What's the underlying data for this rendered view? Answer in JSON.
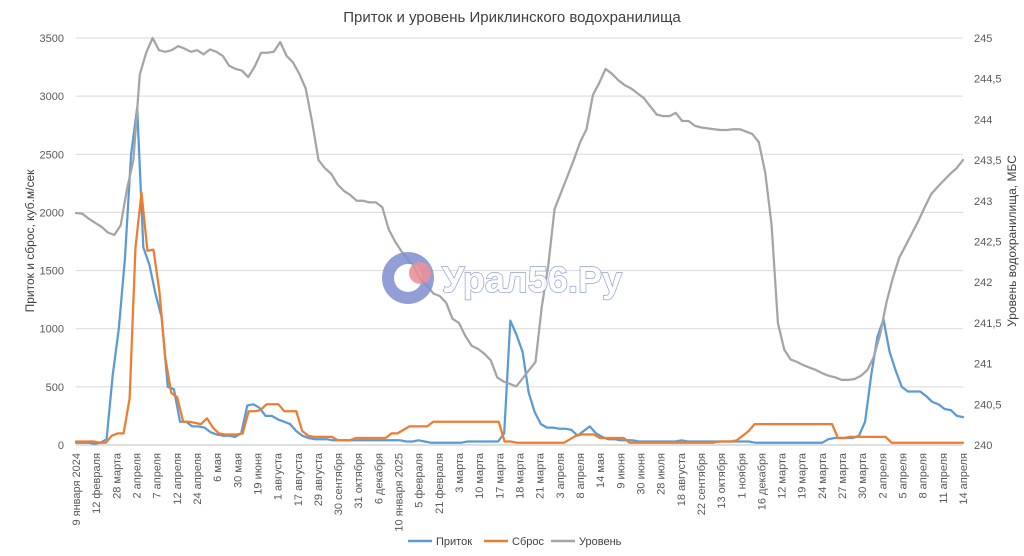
{
  "watermark": {
    "text": "Урал56.Ру"
  },
  "chart_data": {
    "type": "line",
    "title": "Приток и уровень Ириклинского водохранилища",
    "ylabel_left": "Приток и сброс, куб.м/сек",
    "ylabel_right": "Уровень водохранилища, МБС",
    "ylim_left": [
      0,
      3500
    ],
    "ylim_right": [
      240,
      245
    ],
    "left_ticks": [
      "0",
      "500",
      "1000",
      "1500",
      "2000",
      "2500",
      "3000",
      "3500"
    ],
    "right_ticks": [
      "240",
      "240,5",
      "241",
      "241,5",
      "242",
      "242,5",
      "243",
      "243,5",
      "244",
      "244,5",
      "245"
    ],
    "x_tick_labels": [
      "9 января 2024",
      "12 февраля",
      "28 марта",
      "2 апреля",
      "7 апреля",
      "12 апреля",
      "24 апреля",
      "6 мая",
      "30 мая",
      "19 июня",
      "1 августа",
      "17 августа",
      "29 августа",
      "30 сентября",
      "31 октября",
      "6 декабря",
      "10 января 2025",
      "5 февраля",
      "21 февраля",
      "3 марта",
      "10 марта",
      "17 марта",
      "18 марта",
      "21 марта",
      "3 апреля",
      "8 апреля",
      "14 мая",
      "9 июня",
      "30 июня",
      "28 июля",
      "18 августа",
      "22 сентября",
      "13 октября",
      "1 ноября",
      "16 декабря",
      "12 марта",
      "19 марта",
      "24 марта",
      "27 марта",
      "30 марта",
      "2 апреля",
      "5 апреля",
      "8 апреля",
      "11 апреля",
      "14 апреля"
    ],
    "grid": true,
    "legend_position": "bottom",
    "series": [
      {
        "name": "Приток",
        "axis": "left",
        "color": "#5b9bd5",
        "values": [
          20,
          20,
          20,
          10,
          20,
          50,
          600,
          1000,
          1600,
          2500,
          2900,
          1700,
          1550,
          1300,
          1100,
          500,
          480,
          200,
          200,
          160,
          160,
          150,
          110,
          90,
          80,
          80,
          70,
          100,
          340,
          350,
          320,
          250,
          250,
          220,
          200,
          180,
          120,
          80,
          60,
          50,
          50,
          50,
          40,
          40,
          40,
          40,
          40,
          40,
          40,
          40,
          40,
          40,
          40,
          40,
          30,
          30,
          40,
          30,
          20,
          20,
          20,
          20,
          20,
          20,
          30,
          30,
          30,
          30,
          30,
          30,
          100,
          1070,
          950,
          800,
          450,
          280,
          180,
          150,
          150,
          140,
          140,
          130,
          80,
          120,
          160,
          100,
          70,
          50,
          50,
          40,
          40,
          40,
          30,
          30,
          30,
          30,
          30,
          30,
          30,
          40,
          30,
          30,
          30,
          30,
          30,
          30,
          30,
          30,
          30,
          30,
          30,
          20,
          20,
          20,
          20,
          20,
          20,
          20,
          20,
          20,
          20,
          20,
          20,
          50,
          60,
          60,
          60,
          60,
          80,
          200,
          600,
          930,
          1080,
          800,
          640,
          500,
          460,
          460,
          460,
          420,
          370,
          350,
          310,
          300,
          250,
          240
        ]
      },
      {
        "name": "Сброс",
        "axis": "left",
        "color": "#ed7d31",
        "values": [
          30,
          30,
          30,
          30,
          20,
          20,
          80,
          100,
          100,
          400,
          1700,
          2170,
          1670,
          1680,
          1330,
          750,
          450,
          410,
          200,
          200,
          190,
          180,
          230,
          150,
          100,
          90,
          90,
          90,
          100,
          290,
          290,
          300,
          350,
          350,
          350,
          290,
          290,
          290,
          120,
          80,
          70,
          70,
          70,
          70,
          40,
          40,
          40,
          60,
          60,
          60,
          60,
          60,
          60,
          100,
          100,
          130,
          160,
          160,
          160,
          160,
          200,
          200,
          200,
          200,
          200,
          200,
          200,
          200,
          200,
          200,
          200,
          200,
          30,
          30,
          20,
          20,
          20,
          20,
          20,
          20,
          20,
          20,
          20,
          50,
          80,
          90,
          90,
          90,
          60,
          60,
          60,
          60,
          60,
          20,
          20,
          20,
          20,
          20,
          20,
          20,
          20,
          20,
          20,
          20,
          20,
          20,
          20,
          20,
          30,
          30,
          30,
          40,
          80,
          120,
          180,
          180,
          180,
          180,
          180,
          180,
          180,
          180,
          180,
          180,
          180,
          180,
          180,
          180,
          60,
          60,
          70,
          70,
          70,
          70,
          70,
          70,
          70,
          20,
          20,
          20,
          20,
          20,
          20,
          20,
          20,
          20,
          20,
          20,
          20,
          20
        ]
      },
      {
        "name": "Уровень",
        "axis": "right",
        "color": "#a5a5a5",
        "values": [
          242.85,
          242.84,
          242.78,
          242.73,
          242.68,
          242.61,
          242.58,
          242.7,
          243.15,
          243.5,
          244.55,
          244.82,
          245,
          244.85,
          244.83,
          244.85,
          244.9,
          244.87,
          244.83,
          244.85,
          244.8,
          244.86,
          244.83,
          244.78,
          244.66,
          244.62,
          244.6,
          244.52,
          244.65,
          244.82,
          244.82,
          244.83,
          244.95,
          244.78,
          244.7,
          244.56,
          244.38,
          243.97,
          243.5,
          243.4,
          243.33,
          243.2,
          243.12,
          243.07,
          243,
          243,
          242.98,
          242.98,
          242.92,
          242.65,
          242.5,
          242.38,
          242.28,
          242.18,
          242.03,
          241.96,
          241.86,
          241.83,
          241.75,
          241.55,
          241.5,
          241.34,
          241.22,
          241.18,
          241.12,
          241.04,
          240.83,
          240.78,
          240.75,
          240.72,
          240.82,
          240.92,
          241.02,
          241.7,
          242.2,
          242.9,
          243.1,
          243.3,
          243.5,
          243.72,
          243.88,
          244.3,
          244.45,
          244.62,
          244.56,
          244.48,
          244.42,
          244.38,
          244.32,
          244.26,
          244.16,
          244.06,
          244.04,
          244.04,
          244.08,
          243.98,
          243.98,
          243.92,
          243.9,
          243.89,
          243.88,
          243.87,
          243.87,
          243.88,
          243.88,
          243.85,
          243.82,
          243.72,
          243.35,
          242.7,
          241.5,
          241.17,
          241.05,
          241.02,
          240.98,
          240.95,
          240.92,
          240.88,
          240.85,
          240.83,
          240.8,
          240.8,
          240.81,
          240.85,
          240.92,
          241.08,
          241.35,
          241.75,
          242.05,
          242.3,
          242.45,
          242.6,
          242.75,
          242.92,
          243.08,
          243.17,
          243.25,
          243.33,
          243.4,
          243.5
        ]
      }
    ]
  }
}
